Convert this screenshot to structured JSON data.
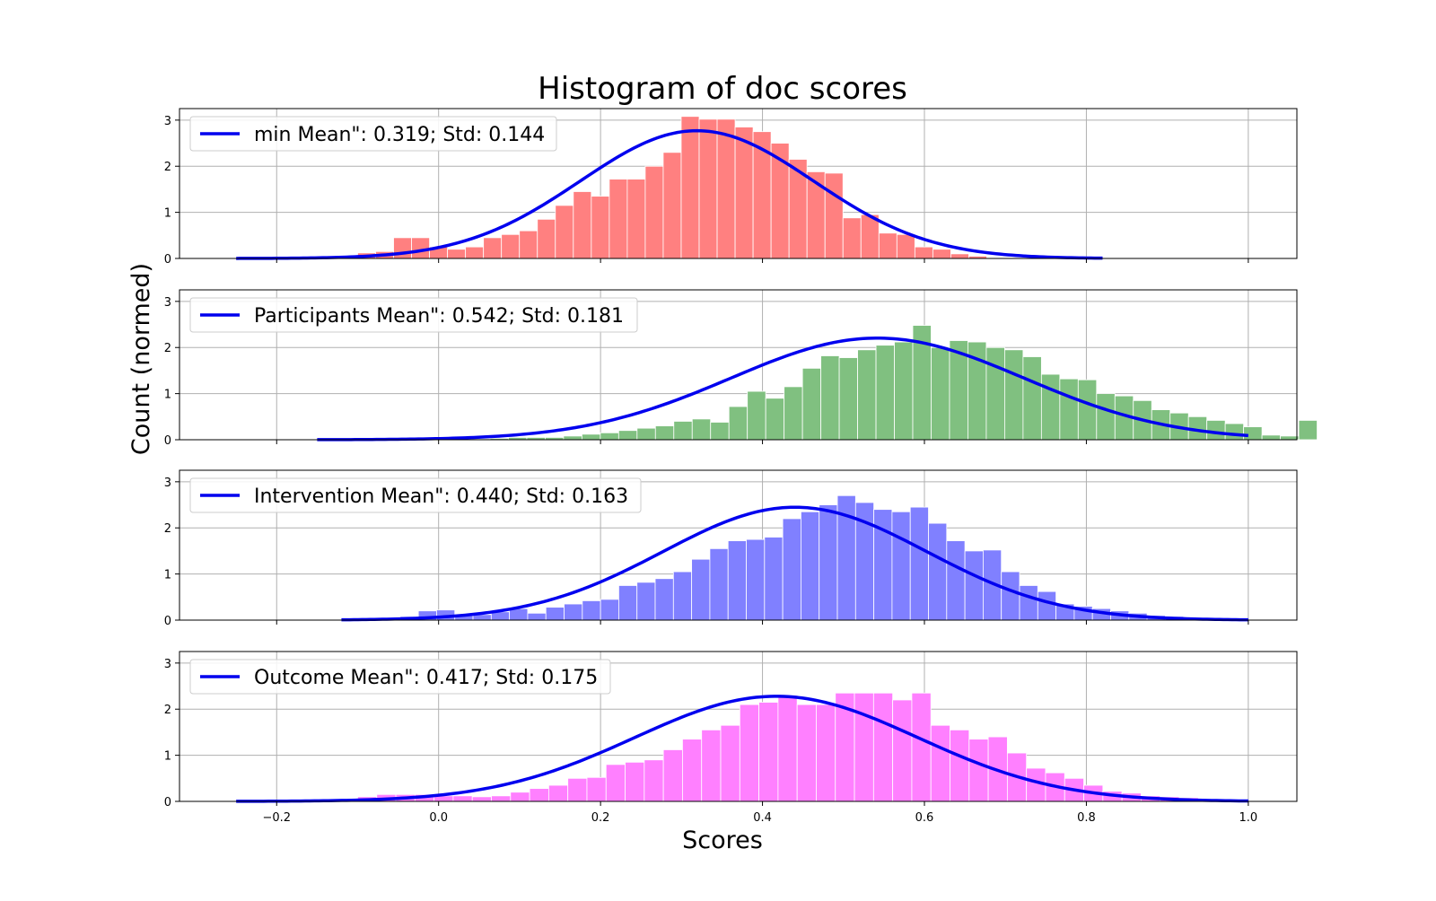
{
  "figure": {
    "title": "Histogram of doc scores",
    "xlabel": "Scores",
    "ylabel": "Count (normed)"
  },
  "chart_data": [
    {
      "type": "bar",
      "panel": "min",
      "legend_label": "min Mean\": 0.319; Std: 0.144",
      "bar_color": "#ff8080",
      "curve_color": "#0000ee",
      "mean": 0.319,
      "std": 0.144,
      "curve_range": [
        -0.25,
        0.82
      ],
      "bin_start": -0.1,
      "bin_width": 0.0222,
      "values": [
        0.12,
        0.15,
        0.45,
        0.45,
        0.25,
        0.2,
        0.25,
        0.45,
        0.52,
        0.6,
        0.85,
        1.15,
        1.45,
        1.35,
        1.72,
        1.72,
        2.0,
        2.3,
        3.08,
        3.02,
        3.02,
        2.85,
        2.75,
        2.5,
        2.15,
        1.88,
        1.85,
        0.88,
        0.95,
        0.55,
        0.52,
        0.25,
        0.2,
        0.1,
        0.05
      ],
      "xlim": [
        -0.32,
        1.06
      ],
      "ylim": [
        0,
        3.25
      ],
      "yticks": [
        0,
        1,
        2,
        3
      ],
      "grid": true,
      "legend_position": "upper left"
    },
    {
      "type": "bar",
      "panel": "Participants",
      "legend_label": "Participants Mean\": 0.542; Std: 0.181",
      "bar_color": "#80c080",
      "curve_color": "#0000ee",
      "mean": 0.542,
      "std": 0.181,
      "curve_range": [
        -0.15,
        1.0
      ],
      "bin_start": -0.05,
      "bin_width": 0.0227,
      "values": [
        0.02,
        0.02,
        0.02,
        0.02,
        0.02,
        0.03,
        0.05,
        0.05,
        0.05,
        0.08,
        0.12,
        0.15,
        0.2,
        0.25,
        0.3,
        0.4,
        0.45,
        0.38,
        0.72,
        1.05,
        0.9,
        1.15,
        1.55,
        1.82,
        1.78,
        1.95,
        2.05,
        2.12,
        2.48,
        2.0,
        2.15,
        2.12,
        2.0,
        1.95,
        1.8,
        1.42,
        1.32,
        1.3,
        1.0,
        0.95,
        0.85,
        0.65,
        0.58,
        0.5,
        0.42,
        0.35,
        0.28,
        0.1,
        0.08,
        0.42
      ],
      "xlim": [
        -0.32,
        1.06
      ],
      "ylim": [
        0,
        3.25
      ],
      "yticks": [
        0,
        1,
        2,
        3
      ],
      "grid": true,
      "legend_position": "upper left"
    },
    {
      "type": "bar",
      "panel": "Intervention",
      "legend_label": "Intervention Mean\": 0.440; Std: 0.163",
      "bar_color": "#8080ff",
      "curve_color": "#0000ee",
      "mean": 0.44,
      "std": 0.163,
      "curve_range": [
        -0.12,
        1.0
      ],
      "bin_start": -0.07,
      "bin_width": 0.0225,
      "values": [
        0.05,
        0.08,
        0.2,
        0.22,
        0.1,
        0.12,
        0.18,
        0.25,
        0.15,
        0.28,
        0.35,
        0.42,
        0.45,
        0.75,
        0.82,
        0.9,
        1.05,
        1.32,
        1.55,
        1.72,
        1.75,
        1.8,
        2.2,
        2.35,
        2.5,
        2.7,
        2.55,
        2.4,
        2.35,
        2.45,
        2.1,
        1.72,
        1.5,
        1.52,
        1.05,
        0.75,
        0.62,
        0.35,
        0.3,
        0.25,
        0.2,
        0.15,
        0.1,
        0.08,
        0.05
      ],
      "xlim": [
        -0.32,
        1.06
      ],
      "ylim": [
        0,
        3.25
      ],
      "yticks": [
        0,
        1,
        2,
        3
      ],
      "grid": true,
      "legend_position": "upper left"
    },
    {
      "type": "bar",
      "panel": "Outcome",
      "legend_label": "Outcome Mean\": 0.417; Std: 0.175",
      "bar_color": "#ff80ff",
      "curve_color": "#0000ee",
      "mean": 0.417,
      "std": 0.175,
      "curve_range": [
        -0.25,
        1.0
      ],
      "bin_start": -0.1,
      "bin_width": 0.0236,
      "values": [
        0.1,
        0.15,
        0.15,
        0.15,
        0.12,
        0.12,
        0.1,
        0.12,
        0.2,
        0.28,
        0.35,
        0.5,
        0.52,
        0.8,
        0.85,
        0.9,
        1.12,
        1.35,
        1.55,
        1.65,
        2.1,
        2.15,
        2.3,
        2.1,
        2.1,
        2.35,
        2.35,
        2.35,
        2.2,
        2.35,
        1.65,
        1.55,
        1.35,
        1.4,
        1.05,
        0.72,
        0.62,
        0.5,
        0.35,
        0.22,
        0.18,
        0.12,
        0.1,
        0.08,
        0.05
      ],
      "xlim": [
        -0.32,
        1.06
      ],
      "ylim": [
        0,
        3.25
      ],
      "yticks": [
        0,
        1,
        2,
        3
      ],
      "grid": true,
      "legend_position": "upper left"
    }
  ],
  "x_axis": {
    "ticks": [
      -0.2,
      0.0,
      0.2,
      0.4,
      0.6,
      0.8,
      1.0
    ],
    "tick_labels": [
      "−0.2",
      "0.0",
      "0.2",
      "0.4",
      "0.6",
      "0.8",
      "1.0"
    ]
  }
}
